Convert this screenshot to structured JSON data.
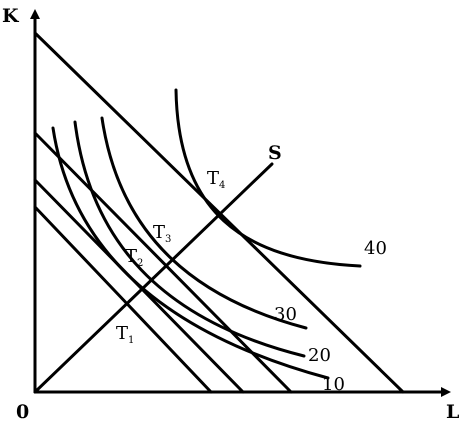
{
  "axes": {
    "y_label": "K",
    "x_label": "L",
    "origin_label": "0"
  },
  "expansion_path": {
    "label": "S"
  },
  "tangency_points": [
    {
      "letter": "T",
      "sub": "1"
    },
    {
      "letter": "T",
      "sub": "2"
    },
    {
      "letter": "T",
      "sub": "3"
    },
    {
      "letter": "T",
      "sub": "4"
    }
  ],
  "isoquants": [
    {
      "label": "10"
    },
    {
      "label": "20"
    },
    {
      "label": "30"
    },
    {
      "label": "40"
    }
  ],
  "colors": {
    "ink": "#000000",
    "background": "#ffffff"
  }
}
